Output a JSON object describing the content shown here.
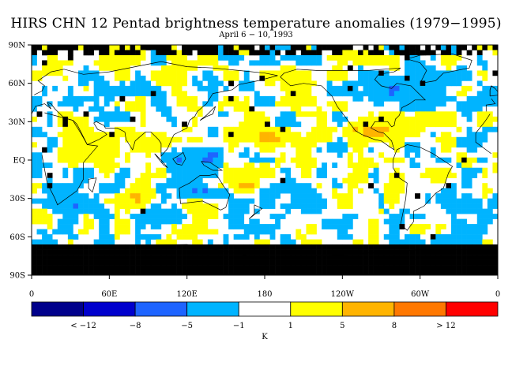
{
  "chart_data": {
    "type": "heatmap",
    "title": "HIRS CHN 12 Pentad brightness temperature anomalies (1979−1995)",
    "subtitle": "April 6 − 10, 1993",
    "y_ticks": [
      "90N",
      "60N",
      "30N",
      "EQ",
      "30S",
      "60S",
      "90S"
    ],
    "x_ticks": [
      "0",
      "60E",
      "120E",
      "180",
      "120W",
      "60W",
      "0"
    ],
    "colorbar": {
      "unit": "K",
      "labels": [
        "< −12",
        "−8",
        "−5",
        "−1",
        "1",
        "5",
        "8",
        "> 12"
      ],
      "colors": [
        "#00008b",
        "#0000cd",
        "#1e64ff",
        "#00b4ff",
        "#ffffff",
        "#ffff00",
        "#ffb400",
        "#ff7800",
        "#ff0000"
      ]
    },
    "missing_color": "#000000",
    "regions": [
      {
        "anomaly": "warm",
        "value": 6,
        "lon": [
          155,
          230
        ],
        "lat": [
          10,
          25
        ]
      },
      {
        "anomaly": "warm",
        "value": 5,
        "lon": [
          235,
          290
        ],
        "lat": [
          15,
          30
        ]
      },
      {
        "anomaly": "warm",
        "value": 4,
        "lon": [
          230,
          270
        ],
        "lat": [
          75,
          85
        ]
      },
      {
        "anomaly": "warm",
        "value": 2,
        "lon": [
          20,
          60
        ],
        "lat": [
          0,
          30
        ]
      },
      {
        "anomaly": "warm",
        "value": 3,
        "lon": [
          60,
          100
        ],
        "lat": [
          -35,
          -15
        ]
      },
      {
        "anomaly": "warm",
        "value": 3,
        "lon": [
          140,
          180
        ],
        "lat": [
          -25,
          -15
        ]
      },
      {
        "anomaly": "warm",
        "value": 2,
        "lon": [
          265,
          290
        ],
        "lat": [
          -25,
          -10
        ]
      },
      {
        "anomaly": "cold",
        "value": -4,
        "lon": [
          100,
          150
        ],
        "lat": [
          -5,
          15
        ]
      },
      {
        "anomaly": "cold",
        "value": -6,
        "lon": [
          120,
          155
        ],
        "lat": [
          -30,
          -20
        ]
      },
      {
        "anomaly": "cold",
        "value": -3,
        "lon": [
          250,
          320
        ],
        "lat": [
          45,
          70
        ]
      },
      {
        "anomaly": "cold",
        "value": -3,
        "lon": [
          0,
          60
        ],
        "lat": [
          -45,
          -30
        ]
      },
      {
        "anomaly": "cold",
        "value": -2,
        "lon": [
          270,
          360
        ],
        "lat": [
          -70,
          -55
        ]
      }
    ]
  }
}
